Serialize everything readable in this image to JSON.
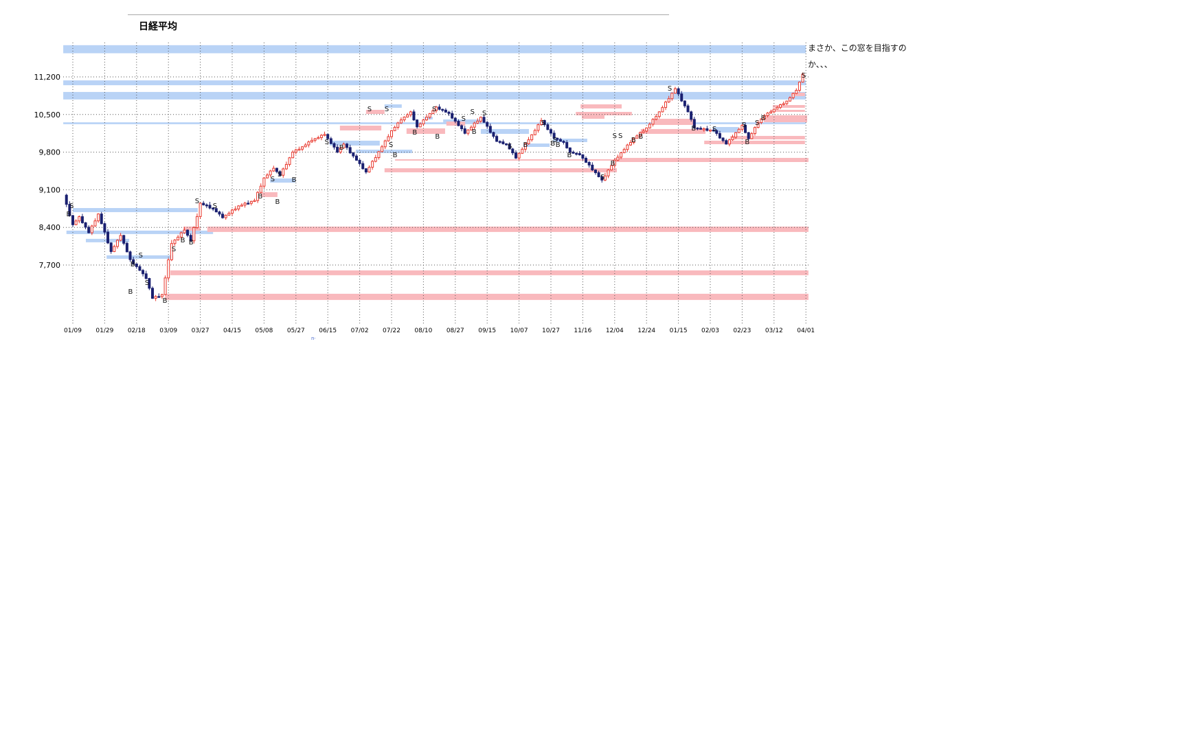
{
  "page": {
    "title": "日経平均",
    "annotation": {
      "line1": "まさか、この窓を目指すの",
      "line2": "か、、、"
    },
    "axis_artifact": "n·"
  },
  "chart_data": {
    "type": "candlestick",
    "title": "日経平均",
    "grid": "dotted",
    "legend_position": "none",
    "y_axis": {
      "tick_labels": [
        "11,200",
        "10,500",
        "9,800",
        "9,100",
        "8,400",
        "7,700"
      ],
      "tick_values": [
        11200,
        10500,
        9800,
        9100,
        8400,
        7700
      ],
      "ylim": [
        6900,
        11950
      ]
    },
    "x_axis": {
      "tick_labels": [
        "01/09",
        "01/29",
        "02/18",
        "03/09",
        "03/27",
        "04/15",
        "05/08",
        "05/27",
        "06/15",
        "07/02",
        "07/22",
        "08/10",
        "08/27",
        "09/15",
        "10/07",
        "10/27",
        "11/16",
        "12/04",
        "12/24",
        "01/15",
        "02/03",
        "02/23",
        "03/12",
        "04/01"
      ]
    },
    "colors": {
      "up_candle": "#e8372c",
      "down_candle": "#1a2070",
      "window_blue": "#b9d3f6",
      "window_pink": "#f9b9bd",
      "grid": "#555555",
      "text": "#000000"
    },
    "series_start_close": 9000,
    "candles_per_tick_gap": 10,
    "price_path_legs": [
      [
        3,
        8450,
        60
      ],
      [
        2,
        8600,
        50
      ],
      [
        3,
        8300,
        55
      ],
      [
        3,
        8650,
        50
      ],
      [
        4,
        7950,
        60
      ],
      [
        3,
        8250,
        50
      ],
      [
        3,
        7800,
        50
      ],
      [
        3,
        7600,
        55
      ],
      [
        2,
        7450,
        60
      ],
      [
        2,
        7080,
        50
      ],
      [
        3,
        7150,
        60
      ],
      [
        3,
        8100,
        70
      ],
      [
        4,
        8350,
        60
      ],
      [
        2,
        8150,
        50
      ],
      [
        3,
        8850,
        60
      ],
      [
        4,
        8750,
        65
      ],
      [
        3,
        8580,
        50
      ],
      [
        5,
        8800,
        55
      ],
      [
        5,
        8900,
        55
      ],
      [
        3,
        9320,
        55
      ],
      [
        3,
        9500,
        50
      ],
      [
        2,
        9370,
        45
      ],
      [
        4,
        9800,
        55
      ],
      [
        3,
        9900,
        50
      ],
      [
        3,
        10020,
        55
      ],
      [
        4,
        10130,
        55
      ],
      [
        4,
        9800,
        55
      ],
      [
        2,
        9950,
        45
      ],
      [
        4,
        9650,
        55
      ],
      [
        3,
        9430,
        50
      ],
      [
        5,
        9900,
        55
      ],
      [
        3,
        10200,
        50
      ],
      [
        3,
        10400,
        50
      ],
      [
        3,
        10550,
        50
      ],
      [
        2,
        10270,
        45
      ],
      [
        3,
        10450,
        50
      ],
      [
        3,
        10640,
        50
      ],
      [
        4,
        10520,
        55
      ],
      [
        5,
        10150,
        55
      ],
      [
        5,
        10450,
        55
      ],
      [
        5,
        10000,
        55
      ],
      [
        3,
        9950,
        45
      ],
      [
        3,
        9690,
        50
      ],
      [
        4,
        10030,
        55
      ],
      [
        4,
        10390,
        50
      ],
      [
        4,
        10060,
        55
      ],
      [
        3,
        9980,
        45
      ],
      [
        2,
        9800,
        45
      ],
      [
        3,
        9750,
        45
      ],
      [
        7,
        9280,
        55
      ],
      [
        4,
        9650,
        60
      ],
      [
        6,
        10060,
        50
      ],
      [
        4,
        10250,
        45
      ],
      [
        4,
        10550,
        50
      ],
      [
        5,
        10980,
        55
      ],
      [
        4,
        10550,
        55
      ],
      [
        2,
        10250,
        50
      ],
      [
        6,
        10200,
        55
      ],
      [
        4,
        9950,
        50
      ],
      [
        5,
        10300,
        50
      ],
      [
        2,
        10050,
        45
      ],
      [
        3,
        10350,
        45
      ],
      [
        2,
        10480,
        45
      ],
      [
        3,
        10600,
        40
      ],
      [
        4,
        10750,
        40
      ],
      [
        3,
        10950,
        40
      ],
      [
        2,
        11250,
        50
      ]
    ],
    "windows": [
      [
        -0.3,
        23.0,
        11640,
        11790,
        "blue"
      ],
      [
        -0.3,
        23.0,
        11045,
        11135,
        "blue"
      ],
      [
        -0.3,
        23.0,
        10780,
        10920,
        "blue"
      ],
      [
        -0.3,
        23.0,
        10320,
        10355,
        "blue"
      ],
      [
        0.0,
        3.92,
        8684,
        8760,
        "blue"
      ],
      [
        -0.2,
        4.4,
        8276,
        8340,
        "blue"
      ],
      [
        0.41,
        1.77,
        8123,
        8187,
        "blue"
      ],
      [
        1.06,
        3.15,
        7816,
        7880,
        "blue"
      ],
      [
        6.19,
        6.98,
        9233,
        9310,
        "blue"
      ],
      [
        8.06,
        9.63,
        9923,
        10013,
        "blue"
      ],
      [
        8.88,
        10.65,
        9782,
        9846,
        "blue"
      ],
      [
        9.78,
        10.32,
        10625,
        10689,
        "blue"
      ],
      [
        11.03,
        11.29,
        10408,
        10459,
        "blue"
      ],
      [
        11.62,
        12.8,
        10344,
        10408,
        "blue"
      ],
      [
        12.8,
        14.31,
        10140,
        10230,
        "blue"
      ],
      [
        14.14,
        14.96,
        9897,
        9961,
        "blue"
      ],
      [
        15.06,
        16.14,
        9987,
        10051,
        "blue"
      ],
      [
        20.09,
        20.88,
        10165,
        10268,
        "blue"
      ],
      [
        3.06,
        23.08,
        7510,
        7600,
        "pink"
      ],
      [
        2.89,
        23.08,
        7050,
        7165,
        "pink"
      ],
      [
        4.22,
        23.08,
        8315,
        8415,
        "pink"
      ],
      [
        3.47,
        4.01,
        8340,
        8416,
        "pink"
      ],
      [
        5.91,
        6.42,
        8965,
        9055,
        "pink"
      ],
      [
        10.47,
        11.68,
        10140,
        10242,
        "pink"
      ],
      [
        11.72,
        12.31,
        10293,
        10370,
        "pink"
      ],
      [
        9.2,
        9.78,
        10510,
        10587,
        "pink"
      ],
      [
        8.38,
        9.68,
        10204,
        10293,
        "pink"
      ],
      [
        9.78,
        17.07,
        9425,
        9500,
        "pink"
      ],
      [
        10.11,
        23.08,
        9642,
        9668,
        "pink"
      ],
      [
        17.0,
        23.08,
        9616,
        9693,
        "pink"
      ],
      [
        15.93,
        17.22,
        10613,
        10689,
        "pink"
      ],
      [
        15.78,
        17.54,
        10485,
        10549,
        "pink"
      ],
      [
        15.97,
        16.68,
        10421,
        10485,
        "pink"
      ],
      [
        18.19,
        19.48,
        10306,
        10421,
        "pink"
      ],
      [
        17.82,
        19.85,
        10140,
        10230,
        "pink"
      ],
      [
        20.63,
        22.97,
        10038,
        10102,
        "pink"
      ],
      [
        19.81,
        22.97,
        9948,
        10013,
        "pink"
      ],
      [
        21.68,
        23.04,
        10357,
        10485,
        "pink"
      ],
      [
        21.9,
        22.97,
        10549,
        10587,
        "pink"
      ],
      [
        21.96,
        22.97,
        10625,
        10676,
        "pink"
      ],
      [
        22.54,
        22.97,
        10842,
        10906,
        "pink"
      ]
    ],
    "markers": [
      [
        -0.04,
        8812,
        "S"
      ],
      [
        -0.13,
        8659,
        "B"
      ],
      [
        2.13,
        7893,
        "S"
      ],
      [
        1.88,
        7727,
        "B"
      ],
      [
        2.33,
        7382,
        "S"
      ],
      [
        1.81,
        7216,
        "B"
      ],
      [
        2.89,
        7050,
        "B"
      ],
      [
        3.17,
        8008,
        "S"
      ],
      [
        3.45,
        8174,
        "B"
      ],
      [
        3.71,
        8135,
        "B"
      ],
      [
        3.9,
        8901,
        "S"
      ],
      [
        4.46,
        8812,
        "S"
      ],
      [
        6.27,
        9310,
        "S"
      ],
      [
        6.49,
        9399,
        "S"
      ],
      [
        5.88,
        8991,
        "B"
      ],
      [
        6.42,
        8889,
        "B"
      ],
      [
        6.94,
        9297,
        "B"
      ],
      [
        7.97,
        9999,
        "S"
      ],
      [
        8.43,
        9897,
        "B"
      ],
      [
        9.98,
        9948,
        "S"
      ],
      [
        10.11,
        9757,
        "B"
      ],
      [
        9.31,
        10613,
        "S"
      ],
      [
        9.85,
        10613,
        "S"
      ],
      [
        10.73,
        10178,
        "B"
      ],
      [
        11.44,
        10102,
        "B"
      ],
      [
        11.34,
        10613,
        "S"
      ],
      [
        12.26,
        10434,
        "S"
      ],
      [
        12.59,
        10191,
        "B"
      ],
      [
        12.54,
        10562,
        "S"
      ],
      [
        12.91,
        10536,
        "S"
      ],
      [
        13.71,
        9923,
        "S"
      ],
      [
        14.2,
        9948,
        "B"
      ],
      [
        14.76,
        10357,
        "S"
      ],
      [
        15.13,
        10038,
        "S"
      ],
      [
        15.06,
        9974,
        "B"
      ],
      [
        15.22,
        9948,
        "B"
      ],
      [
        15.58,
        9757,
        "B"
      ],
      [
        16.62,
        9348,
        "S"
      ],
      [
        16.94,
        9604,
        "B"
      ],
      [
        17.0,
        10115,
        "S"
      ],
      [
        17.18,
        10115,
        "S"
      ],
      [
        17.59,
        10038,
        "B"
      ],
      [
        17.82,
        10102,
        "B"
      ],
      [
        18.73,
        10996,
        "S"
      ],
      [
        19.48,
        10255,
        "B"
      ],
      [
        20.13,
        10242,
        "S"
      ],
      [
        21.06,
        10319,
        "S"
      ],
      [
        21.16,
        10000,
        "B"
      ],
      [
        21.47,
        10357,
        "S"
      ],
      [
        21.66,
        10446,
        "B"
      ],
      [
        22.93,
        11238,
        "S"
      ]
    ]
  }
}
